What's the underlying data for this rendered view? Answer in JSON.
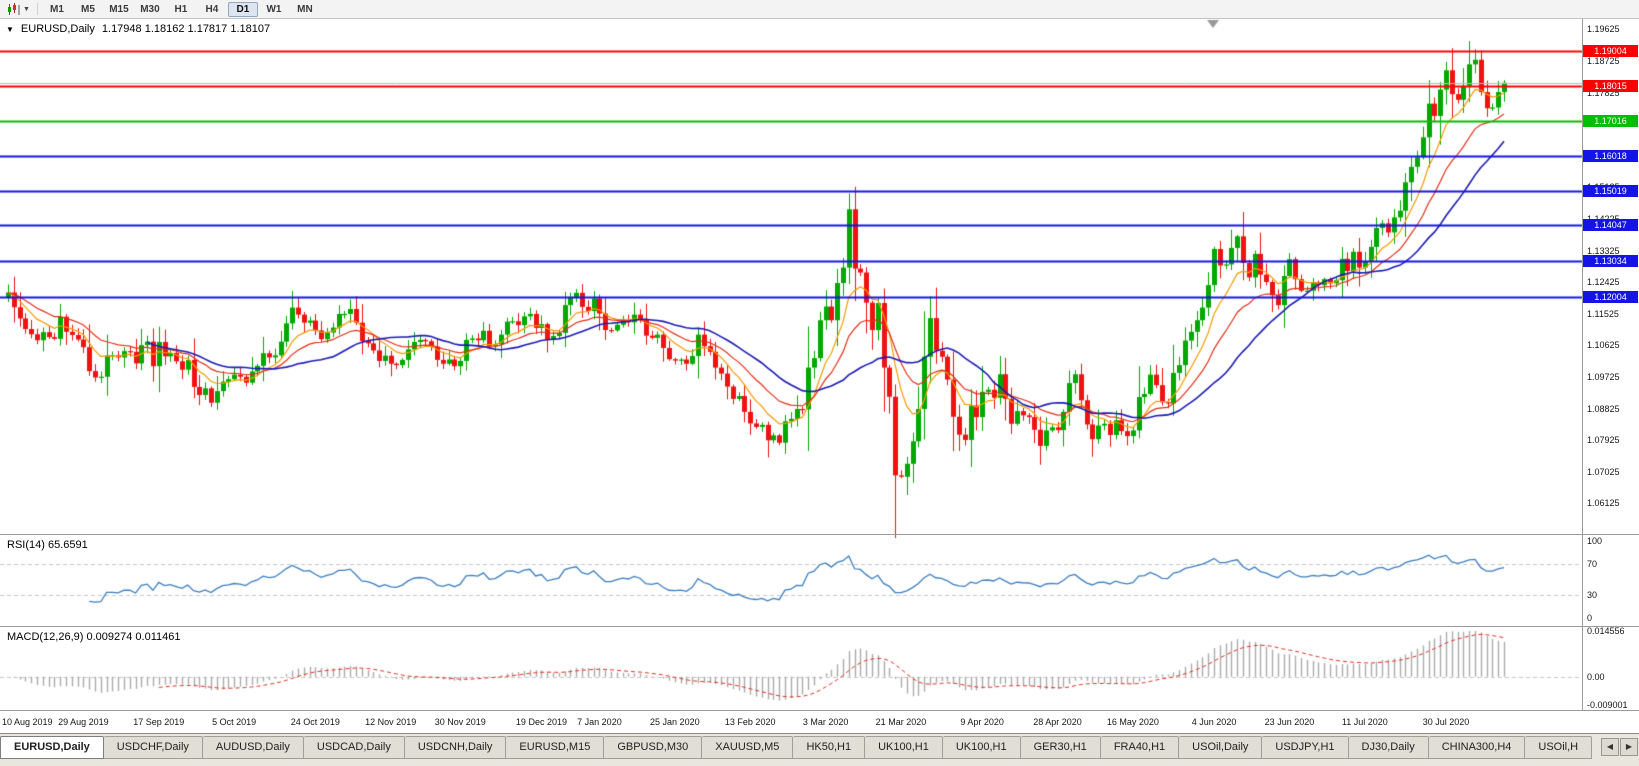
{
  "toolbar": {
    "timeframes": [
      "M1",
      "M5",
      "M15",
      "M30",
      "H1",
      "H4",
      "D1",
      "W1",
      "MN"
    ],
    "active_timeframe": "D1"
  },
  "chart_data": {
    "type": "candlestick",
    "symbol": "EURUSD",
    "period": "Daily",
    "title_symbol": "EURUSD,Daily",
    "title_ohlc": "1.17948 1.18162 1.17817 1.18107",
    "collapse_icon": "▼",
    "bid": 1.18107,
    "bid_line_color": "#B8B8B8",
    "up_color": "#00A800",
    "down_color": "#EF1212",
    "y_min": 1.0525,
    "y_max": 1.1995,
    "y_axis_labels": [
      "1.19625",
      "1.18725",
      "1.17825",
      "1.16925",
      "1.16025",
      "1.15125",
      "1.14225",
      "1.13325",
      "1.12425",
      "1.11525",
      "1.10625",
      "1.09725",
      "1.08825",
      "1.07925",
      "1.07025",
      "1.06125"
    ],
    "x_labels": [
      {
        "t": "10 Aug 2019",
        "i": 0
      },
      {
        "t": "29 Aug 2019",
        "i": 13
      },
      {
        "t": "17 Sep 2019",
        "i": 26
      },
      {
        "t": "5 Oct 2019",
        "i": 39
      },
      {
        "t": "24 Oct 2019",
        "i": 53
      },
      {
        "t": "12 Nov 2019",
        "i": 66
      },
      {
        "t": "30 Nov 2019",
        "i": 78
      },
      {
        "t": "19 Dec 2019",
        "i": 92
      },
      {
        "t": "7 Jan 2020",
        "i": 102
      },
      {
        "t": "25 Jan 2020",
        "i": 115
      },
      {
        "t": "13 Feb 2020",
        "i": 128
      },
      {
        "t": "3 Mar 2020",
        "i": 141
      },
      {
        "t": "21 Mar 2020",
        "i": 154
      },
      {
        "t": "9 Apr 2020",
        "i": 168
      },
      {
        "t": "28 Apr 2020",
        "i": 181
      },
      {
        "t": "16 May 2020",
        "i": 194
      },
      {
        "t": "4 Jun 2020",
        "i": 208
      },
      {
        "t": "23 Jun 2020",
        "i": 221
      },
      {
        "t": "11 Jul 2020",
        "i": 234
      },
      {
        "t": "30 Jul 2020",
        "i": 248
      }
    ],
    "closes": [
      1.1213,
      1.1171,
      1.1139,
      1.1109,
      1.1094,
      1.1077,
      1.11,
      1.1086,
      1.1081,
      1.1144,
      1.1101,
      1.1092,
      1.1079,
      1.1057,
      1.0989,
      1.0971,
      1.0973,
      1.1034,
      1.1034,
      1.1028,
      1.1046,
      1.1044,
      1.1011,
      1.1063,
      1.1073,
      1.1003,
      1.1072,
      1.1031,
      1.1041,
      1.1017,
      1.0993,
      1.1021,
      1.0944,
      1.0921,
      1.094,
      1.0899,
      1.0932,
      1.0959,
      1.0966,
      1.0979,
      1.0973,
      1.0956,
      1.0988,
      1.1004,
      1.104,
      1.1028,
      1.1034,
      1.1073,
      1.1125,
      1.117,
      1.115,
      1.1127,
      1.1133,
      1.1105,
      1.108,
      1.1099,
      1.1113,
      1.1152,
      1.1152,
      1.1166,
      1.1127,
      1.1075,
      1.1068,
      1.1048,
      1.1018,
      1.1033,
      1.101,
      1.1006,
      1.1021,
      1.1051,
      1.1072,
      1.1078,
      1.1074,
      1.1059,
      1.1021,
      1.101,
      1.1022,
      1.1003,
      1.1018,
      1.1078,
      1.1082,
      1.1077,
      1.1104,
      1.106,
      1.1065,
      1.1093,
      1.113,
      1.1131,
      1.112,
      1.1145,
      1.1152,
      1.1112,
      1.1123,
      1.1078,
      1.1089,
      1.1098,
      1.1177,
      1.1199,
      1.1212,
      1.1172,
      1.116,
      1.1196,
      1.1153,
      1.1106,
      1.1105,
      1.1121,
      1.1134,
      1.1128,
      1.115,
      1.1136,
      1.109,
      1.1084,
      1.1093,
      1.1055,
      1.1023,
      1.1019,
      1.1022,
      1.101,
      1.1032,
      1.1093,
      1.106,
      1.1044,
      1.0999,
      1.0982,
      1.0945,
      1.091,
      1.0918,
      1.0873,
      1.084,
      1.083,
      1.0836,
      1.0792,
      1.0806,
      1.0785,
      1.0846,
      1.0853,
      1.0881,
      1.088,
      1.0999,
      1.1026,
      1.1134,
      1.1173,
      1.1134,
      1.124,
      1.1284,
      1.145,
      1.1281,
      1.127,
      1.1184,
      1.1106,
      1.1183,
      1.0999,
      1.0916,
      1.0692,
      1.0688,
      1.0725,
      1.0789,
      1.0881,
      1.103,
      1.114,
      1.1047,
      1.103,
      1.0965,
      1.0859,
      1.0808,
      1.0793,
      1.0891,
      1.0858,
      1.093,
      1.0936,
      1.0913,
      1.098,
      1.091,
      1.0839,
      1.0875,
      1.0863,
      1.0858,
      1.0822,
      1.0776,
      1.082,
      1.0829,
      1.0821,
      1.0873,
      1.0955,
      1.098,
      1.0906,
      1.0837,
      1.0795,
      1.0834,
      1.0839,
      1.0807,
      1.0849,
      1.0818,
      1.0804,
      1.082,
      1.0915,
      1.0924,
      1.0979,
      1.0949,
      1.09,
      1.0897,
      1.0984,
      1.1006,
      1.1076,
      1.1101,
      1.1134,
      1.117,
      1.1234,
      1.1337,
      1.129,
      1.1293,
      1.134,
      1.1373,
      1.1297,
      1.1256,
      1.1323,
      1.1264,
      1.1243,
      1.1205,
      1.1177,
      1.126,
      1.1308,
      1.1251,
      1.1218,
      1.1218,
      1.1242,
      1.1234,
      1.1251,
      1.1239,
      1.1248,
      1.1309,
      1.1274,
      1.1329,
      1.1284,
      1.13,
      1.1343,
      1.1397,
      1.141,
      1.1384,
      1.1427,
      1.1446,
      1.1527,
      1.1571,
      1.1598,
      1.1655,
      1.1751,
      1.1716,
      1.1791,
      1.1846,
      1.1778,
      1.1762,
      1.1802,
      1.1863,
      1.1876,
      1.1784,
      1.1738,
      1.174,
      1.1784,
      1.18107
    ],
    "wick_overrides": {
      "36": {
        "l": 1.0879
      },
      "133": {
        "l": 1.0778
      },
      "145": {
        "h": 1.1495
      },
      "155": {
        "l": 1.0636
      },
      "249": {
        "h": 1.1909
      },
      "253": {
        "h": 1.1906
      }
    },
    "hlines": [
      {
        "label": "1.19004",
        "price": 1.19004,
        "color": "#FF0000"
      },
      {
        "label": "1.18015",
        "price": 1.18015,
        "color": "#FF0000"
      },
      {
        "label": "1.17016",
        "price": 1.17016,
        "color": "#00BE00"
      },
      {
        "label": "1.16018",
        "price": 1.16018,
        "color": "#1414E6"
      },
      {
        "label": "1.15019",
        "price": 1.15019,
        "color": "#1414E6"
      },
      {
        "label": "1.14047",
        "price": 1.14047,
        "color": "#1414E6"
      },
      {
        "label": "1.13034",
        "price": 1.13034,
        "color": "#1414E6"
      },
      {
        "label": "1.12004",
        "price": 1.12004,
        "color": "#1414E6"
      }
    ],
    "moving_averages": [
      {
        "name": "ma-fast",
        "type": "ema",
        "period": 8,
        "color": "#F59B00",
        "width": 1.2
      },
      {
        "name": "ma-medium",
        "type": "ema",
        "period": 17,
        "color": "#E33118",
        "width": 1.2
      },
      {
        "name": "ma-slow",
        "type": "sma",
        "period": 25,
        "color": "#1C1CB4",
        "width": 1.6
      }
    ],
    "rsi": {
      "label": "RSI(14) 65.6591",
      "period": 14,
      "value": 65.6591,
      "levels": [
        100,
        70,
        30,
        0
      ],
      "line_color": "#3C7EC0",
      "level_color": "#C8C8C8"
    },
    "macd": {
      "label": "MACD(12,26,9) 0.009274 0.011461",
      "fast": 12,
      "slow": 26,
      "signal_period": 9,
      "main_value": 0.009274,
      "signal_value": 0.011461,
      "axis_labels": [
        {
          "t": "0.014556",
          "v": 0.014556
        },
        {
          "t": "0.00",
          "v": 0
        },
        {
          "t": "-0.009001",
          "v": -0.009001
        }
      ],
      "hist_color": "#ABABAB",
      "signal_color": "#E03020",
      "level_color": "#C8C8C8"
    }
  },
  "tabs": {
    "active_index": 0,
    "scroll_left": "◀",
    "scroll_right": "▶",
    "items": [
      "EURUSD,Daily",
      "USDCHF,Daily",
      "AUDUSD,Daily",
      "USDCAD,Daily",
      "USDCNH,Daily",
      "EURUSD,M15",
      "GBPUSD,M30",
      "XAUUSD,M5",
      "HK50,H1",
      "UK100,H1",
      "UK100,H1",
      "GER30,H1",
      "FRA40,H1",
      "USOil,Daily",
      "USDJPY,H1",
      "DJ30,Daily",
      "CHINA300,H4",
      "USOil,H"
    ]
  }
}
